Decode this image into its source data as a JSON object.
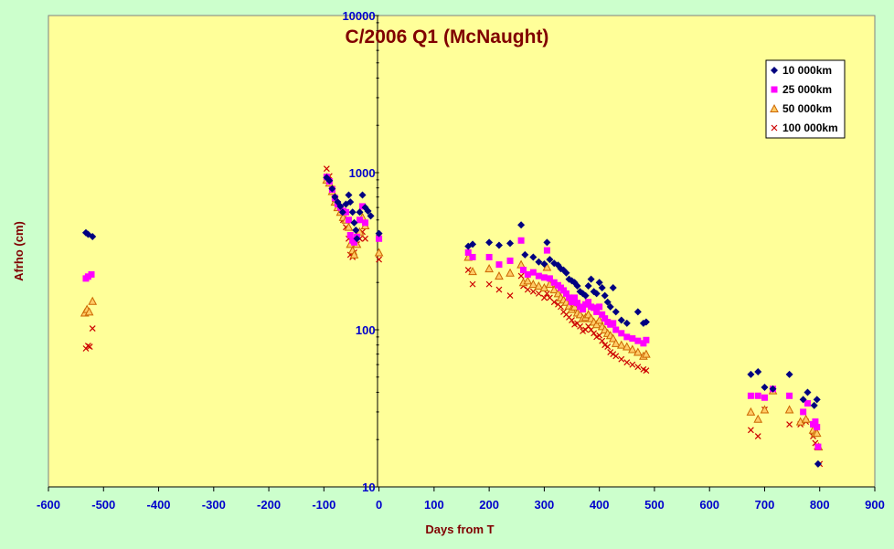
{
  "chart_data": {
    "type": "scatter",
    "title": "C/2006 Q1 (McNaught)",
    "xlabel": "Days from T",
    "ylabel": "Afrho (cm)",
    "xlim": [
      -600,
      900
    ],
    "ylim": [
      10,
      10000
    ],
    "yscale": "log",
    "x_ticks": [
      "-600",
      "-500",
      "-400",
      "-300",
      "-200",
      "-100",
      "0",
      "100",
      "200",
      "300",
      "400",
      "500",
      "600",
      "700",
      "800",
      "900"
    ],
    "y_ticks": [
      "10",
      "100",
      "1000",
      "10000"
    ],
    "legend_position": "top-right",
    "grid": false,
    "series": [
      {
        "name": "10 000km",
        "color": "#000080",
        "marker": "diamond",
        "points": [
          [
            -532,
            415
          ],
          [
            -528,
            405
          ],
          [
            -520,
            392
          ],
          [
            -95,
            930
          ],
          [
            -90,
            890
          ],
          [
            -85,
            790
          ],
          [
            -80,
            700
          ],
          [
            -75,
            650
          ],
          [
            -70,
            610
          ],
          [
            -66,
            560
          ],
          [
            -60,
            630
          ],
          [
            -55,
            720
          ],
          [
            -52,
            650
          ],
          [
            -48,
            560
          ],
          [
            -45,
            480
          ],
          [
            -42,
            430
          ],
          [
            -40,
            380
          ],
          [
            -35,
            560
          ],
          [
            -30,
            720
          ],
          [
            -25,
            600
          ],
          [
            -20,
            570
          ],
          [
            -15,
            530
          ],
          [
            0,
            410
          ],
          [
            162,
            340
          ],
          [
            170,
            350
          ],
          [
            200,
            360
          ],
          [
            218,
            345
          ],
          [
            238,
            355
          ],
          [
            258,
            465
          ],
          [
            265,
            300
          ],
          [
            280,
            290
          ],
          [
            290,
            270
          ],
          [
            300,
            262
          ],
          [
            305,
            360
          ],
          [
            310,
            280
          ],
          [
            318,
            265
          ],
          [
            325,
            258
          ],
          [
            330,
            245
          ],
          [
            335,
            240
          ],
          [
            340,
            230
          ],
          [
            345,
            210
          ],
          [
            350,
            205
          ],
          [
            355,
            200
          ],
          [
            360,
            190
          ],
          [
            365,
            175
          ],
          [
            370,
            170
          ],
          [
            375,
            165
          ],
          [
            380,
            190
          ],
          [
            385,
            210
          ],
          [
            390,
            175
          ],
          [
            395,
            170
          ],
          [
            400,
            200
          ],
          [
            405,
            185
          ],
          [
            410,
            165
          ],
          [
            415,
            150
          ],
          [
            420,
            140
          ],
          [
            425,
            185
          ],
          [
            430,
            130
          ],
          [
            440,
            115
          ],
          [
            450,
            110
          ],
          [
            470,
            130
          ],
          [
            480,
            110
          ],
          [
            485,
            112
          ],
          [
            675,
            52
          ],
          [
            688,
            54
          ],
          [
            700,
            43
          ],
          [
            715,
            42
          ],
          [
            745,
            52
          ],
          [
            770,
            36
          ],
          [
            778,
            40
          ],
          [
            790,
            33
          ],
          [
            795,
            36
          ],
          [
            797,
            14
          ]
        ]
      },
      {
        "name": "25 000km",
        "color": "#ff00ff",
        "marker": "square",
        "points": [
          [
            -532,
            212
          ],
          [
            -528,
            218
          ],
          [
            -522,
            225
          ],
          [
            -95,
            940
          ],
          [
            -90,
            880
          ],
          [
            -85,
            780
          ],
          [
            -80,
            690
          ],
          [
            -75,
            630
          ],
          [
            -70,
            600
          ],
          [
            -65,
            570
          ],
          [
            -60,
            560
          ],
          [
            -55,
            500
          ],
          [
            -52,
            400
          ],
          [
            -48,
            370
          ],
          [
            -45,
            360
          ],
          [
            -40,
            390
          ],
          [
            -35,
            500
          ],
          [
            -30,
            610
          ],
          [
            -25,
            480
          ],
          [
            0,
            380
          ],
          [
            162,
            310
          ],
          [
            170,
            290
          ],
          [
            200,
            290
          ],
          [
            218,
            260
          ],
          [
            238,
            275
          ],
          [
            258,
            370
          ],
          [
            262,
            240
          ],
          [
            270,
            225
          ],
          [
            280,
            232
          ],
          [
            290,
            220
          ],
          [
            300,
            215
          ],
          [
            305,
            320
          ],
          [
            310,
            212
          ],
          [
            318,
            200
          ],
          [
            325,
            192
          ],
          [
            330,
            185
          ],
          [
            335,
            178
          ],
          [
            340,
            170
          ],
          [
            345,
            160
          ],
          [
            350,
            150
          ],
          [
            355,
            160
          ],
          [
            360,
            148
          ],
          [
            365,
            140
          ],
          [
            370,
            135
          ],
          [
            375,
            145
          ],
          [
            380,
            150
          ],
          [
            385,
            140
          ],
          [
            390,
            138
          ],
          [
            395,
            130
          ],
          [
            400,
            140
          ],
          [
            405,
            125
          ],
          [
            410,
            118
          ],
          [
            415,
            112
          ],
          [
            420,
            108
          ],
          [
            425,
            110
          ],
          [
            430,
            100
          ],
          [
            440,
            95
          ],
          [
            450,
            90
          ],
          [
            460,
            88
          ],
          [
            470,
            85
          ],
          [
            480,
            82
          ],
          [
            485,
            86
          ],
          [
            675,
            38
          ],
          [
            688,
            38
          ],
          [
            700,
            37
          ],
          [
            715,
            42
          ],
          [
            745,
            38
          ],
          [
            770,
            30
          ],
          [
            778,
            34
          ],
          [
            788,
            25
          ],
          [
            792,
            26
          ],
          [
            795,
            24
          ],
          [
            797,
            18
          ]
        ]
      },
      {
        "name": "50 000km",
        "color": "#cc6600",
        "marker": "triangle",
        "points": [
          [
            -534,
            128
          ],
          [
            -530,
            135
          ],
          [
            -526,
            130
          ],
          [
            -520,
            152
          ],
          [
            -95,
            900
          ],
          [
            -90,
            860
          ],
          [
            -85,
            760
          ],
          [
            -80,
            650
          ],
          [
            -75,
            600
          ],
          [
            -70,
            560
          ],
          [
            -65,
            520
          ],
          [
            -60,
            500
          ],
          [
            -55,
            450
          ],
          [
            -52,
            350
          ],
          [
            -48,
            320
          ],
          [
            -45,
            300
          ],
          [
            -40,
            350
          ],
          [
            -35,
            420
          ],
          [
            -30,
            520
          ],
          [
            -25,
            460
          ],
          [
            0,
            310
          ],
          [
            162,
            290
          ],
          [
            170,
            235
          ],
          [
            200,
            245
          ],
          [
            218,
            220
          ],
          [
            238,
            230
          ],
          [
            258,
            260
          ],
          [
            262,
            200
          ],
          [
            270,
            205
          ],
          [
            280,
            195
          ],
          [
            290,
            190
          ],
          [
            300,
            185
          ],
          [
            305,
            250
          ],
          [
            310,
            195
          ],
          [
            318,
            180
          ],
          [
            325,
            170
          ],
          [
            330,
            160
          ],
          [
            335,
            155
          ],
          [
            340,
            150
          ],
          [
            345,
            142
          ],
          [
            350,
            135
          ],
          [
            355,
            140
          ],
          [
            360,
            128
          ],
          [
            365,
            125
          ],
          [
            370,
            118
          ],
          [
            375,
            120
          ],
          [
            380,
            125
          ],
          [
            385,
            118
          ],
          [
            390,
            112
          ],
          [
            395,
            108
          ],
          [
            400,
            115
          ],
          [
            405,
            105
          ],
          [
            410,
            100
          ],
          [
            415,
            95
          ],
          [
            420,
            92
          ],
          [
            425,
            88
          ],
          [
            430,
            82
          ],
          [
            440,
            80
          ],
          [
            450,
            78
          ],
          [
            460,
            75
          ],
          [
            470,
            72
          ],
          [
            480,
            68
          ],
          [
            485,
            70
          ],
          [
            675,
            30
          ],
          [
            688,
            27
          ],
          [
            700,
            31
          ],
          [
            715,
            41
          ],
          [
            745,
            31
          ],
          [
            765,
            26
          ],
          [
            775,
            27
          ],
          [
            788,
            23
          ],
          [
            792,
            22
          ],
          [
            795,
            22
          ],
          [
            798,
            18
          ]
        ]
      },
      {
        "name": "100 000km",
        "color": "#cc0000",
        "marker": "x",
        "points": [
          [
            -532,
            76
          ],
          [
            -528,
            79
          ],
          [
            -525,
            78
          ],
          [
            -520,
            102
          ],
          [
            -95,
            1060
          ],
          [
            -90,
            950
          ],
          [
            -85,
            790
          ],
          [
            -80,
            680
          ],
          [
            -75,
            600
          ],
          [
            -70,
            560
          ],
          [
            -65,
            500
          ],
          [
            -60,
            450
          ],
          [
            -55,
            380
          ],
          [
            -52,
            300
          ],
          [
            -48,
            290
          ],
          [
            -45,
            310
          ],
          [
            -40,
            350
          ],
          [
            -35,
            380
          ],
          [
            -30,
            420
          ],
          [
            -25,
            380
          ],
          [
            0,
            280
          ],
          [
            162,
            240
          ],
          [
            170,
            195
          ],
          [
            200,
            195
          ],
          [
            218,
            180
          ],
          [
            238,
            165
          ],
          [
            258,
            220
          ],
          [
            262,
            190
          ],
          [
            270,
            180
          ],
          [
            280,
            175
          ],
          [
            290,
            170
          ],
          [
            300,
            160
          ],
          [
            305,
            170
          ],
          [
            310,
            160
          ],
          [
            318,
            150
          ],
          [
            325,
            145
          ],
          [
            330,
            140
          ],
          [
            335,
            130
          ],
          [
            340,
            125
          ],
          [
            345,
            120
          ],
          [
            350,
            115
          ],
          [
            355,
            108
          ],
          [
            360,
            110
          ],
          [
            365,
            105
          ],
          [
            370,
            98
          ],
          [
            375,
            100
          ],
          [
            380,
            105
          ],
          [
            385,
            100
          ],
          [
            390,
            95
          ],
          [
            395,
            90
          ],
          [
            400,
            92
          ],
          [
            405,
            85
          ],
          [
            410,
            80
          ],
          [
            415,
            78
          ],
          [
            420,
            72
          ],
          [
            425,
            70
          ],
          [
            430,
            68
          ],
          [
            440,
            65
          ],
          [
            450,
            62
          ],
          [
            460,
            60
          ],
          [
            470,
            58
          ],
          [
            480,
            56
          ],
          [
            485,
            55
          ],
          [
            675,
            23
          ],
          [
            688,
            21
          ],
          [
            700,
            31
          ],
          [
            715,
            42
          ],
          [
            745,
            25
          ],
          [
            765,
            25
          ],
          [
            775,
            26
          ],
          [
            788,
            21
          ],
          [
            792,
            19
          ],
          [
            795,
            18
          ],
          [
            800,
            14
          ]
        ]
      }
    ]
  }
}
